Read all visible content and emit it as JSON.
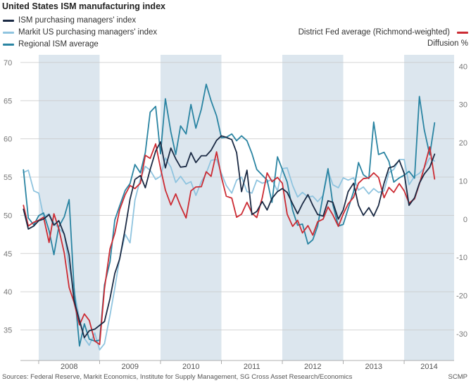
{
  "title": "United States ISM manufacturing index",
  "source": "Sources: Federal Reserve, Markit Economics, Institute for Supply Management, SG Cross Asset Research/Economics",
  "brand": "SCMP",
  "right_axis_label": "Diffusion %",
  "legend": {
    "left": [
      {
        "label": "ISM purchasing managers' index",
        "color": "#1b2a44"
      },
      {
        "label": "Markit US purchasing managers' index",
        "color": "#8fc4df"
      },
      {
        "label": "Regional ISM average",
        "color": "#2a84a2"
      }
    ],
    "right": [
      {
        "label": "District Fed average (Richmond-weighted)",
        "color": "#cc2b33"
      }
    ]
  },
  "chart_data": {
    "type": "line",
    "x_unit": "year",
    "xlim": [
      2007.7,
      2014.82
    ],
    "left_axis": {
      "ylim": [
        31,
        71
      ],
      "ticks": [
        35,
        40,
        45,
        50,
        55,
        60,
        65,
        70
      ]
    },
    "right_axis": {
      "ylim": [
        -37,
        43
      ],
      "ticks": [
        -30,
        -20,
        -10,
        0,
        10,
        20,
        30,
        40
      ]
    },
    "x_tick_labels": [
      "2008",
      "2009",
      "2010",
      "2011",
      "2012",
      "2013",
      "2014"
    ],
    "shaded_periods": [
      [
        2008.0,
        2009.0
      ],
      [
        2010.0,
        2011.0
      ],
      [
        2012.0,
        2013.0
      ],
      [
        2014.0,
        2014.82
      ]
    ],
    "grid": "horizontal",
    "series": [
      {
        "name": "ISM purchasing managers' index",
        "axis": "left",
        "color": "#1b2a44",
        "x": [
          2007.75,
          2007.83,
          2007.92,
          2008.0,
          2008.08,
          2008.17,
          2008.25,
          2008.33,
          2008.42,
          2008.5,
          2008.58,
          2008.67,
          2008.75,
          2008.83,
          2008.92,
          2009.0,
          2009.08,
          2009.17,
          2009.25,
          2009.33,
          2009.42,
          2009.5,
          2009.58,
          2009.67,
          2009.75,
          2009.83,
          2009.92,
          2010.0,
          2010.08,
          2010.17,
          2010.25,
          2010.33,
          2010.42,
          2010.5,
          2010.58,
          2010.67,
          2010.75,
          2010.83,
          2010.92,
          2011.0,
          2011.08,
          2011.17,
          2011.25,
          2011.33,
          2011.42,
          2011.5,
          2011.58,
          2011.67,
          2011.75,
          2011.83,
          2011.92,
          2012.0,
          2012.08,
          2012.17,
          2012.25,
          2012.33,
          2012.42,
          2012.5,
          2012.58,
          2012.67,
          2012.75,
          2012.83,
          2012.92,
          2013.0,
          2013.08,
          2013.17,
          2013.25,
          2013.33,
          2013.42,
          2013.5,
          2013.58,
          2013.67,
          2013.75,
          2013.83,
          2013.92,
          2014.0,
          2014.08,
          2014.17,
          2014.25,
          2014.33,
          2014.42,
          2014.5
        ],
        "values": [
          50.8,
          48.2,
          48.6,
          49.3,
          49.5,
          50.1,
          48.7,
          49.3,
          47.5,
          44.8,
          38.9,
          36.2,
          34.0,
          34.9,
          35.1,
          35.6,
          36.1,
          39.1,
          42.4,
          44.3,
          48.2,
          52.1,
          54.7,
          55.2,
          53.6,
          56.0,
          58.4,
          59.6,
          56.2,
          58.8,
          57.4,
          56.3,
          56.4,
          58.2,
          56.9,
          57.8,
          57.8,
          58.5,
          59.8,
          60.4,
          60.2,
          59.9,
          58.2,
          53.1,
          55.9,
          50.1,
          50.5,
          51.8,
          50.7,
          52.2,
          53.1,
          53.5,
          53.0,
          51.5,
          50.2,
          51.5,
          52.7,
          51.3,
          50.1,
          49.9,
          51.9,
          51.7,
          49.5,
          50.7,
          53.1,
          54.2,
          51.3,
          50.0,
          51.0,
          49.9,
          51.3,
          54.2,
          56.2,
          56.4,
          57.2,
          55.5,
          51.3,
          52.3,
          54.2,
          55.4,
          56.3,
          58.0
        ]
      },
      {
        "name": "Markit US purchasing managers' index",
        "axis": "left",
        "color": "#8fc4df",
        "x": [
          2007.75,
          2007.83,
          2007.92,
          2008.0,
          2008.08,
          2008.17,
          2008.25,
          2008.33,
          2008.42,
          2008.5,
          2008.58,
          2008.67,
          2008.75,
          2008.83,
          2008.92,
          2009.0,
          2009.08,
          2009.17,
          2009.25,
          2009.33,
          2009.42,
          2009.5,
          2009.58,
          2009.67,
          2009.75,
          2009.83,
          2009.92,
          2010.0,
          2010.08,
          2010.17,
          2010.25,
          2010.33,
          2010.42,
          2010.5,
          2010.58,
          2010.67,
          2010.75,
          2010.83,
          2010.92,
          2011.0,
          2011.08,
          2011.17,
          2011.25,
          2011.33,
          2011.42,
          2011.5,
          2011.58,
          2011.67,
          2011.75,
          2011.83,
          2011.92,
          2012.0,
          2012.08,
          2012.17,
          2012.25,
          2012.33,
          2012.42,
          2012.5,
          2012.58,
          2012.67,
          2012.75,
          2012.83,
          2012.92,
          2013.0,
          2013.08,
          2013.17,
          2013.25,
          2013.33,
          2013.42,
          2013.5,
          2013.58,
          2013.67,
          2013.75,
          2013.83,
          2013.92,
          2014.0,
          2014.08,
          2014.17,
          2014.25,
          2014.33,
          2014.42,
          2014.5
        ],
        "values": [
          55.6,
          55.9,
          53.2,
          52.9,
          49.8,
          50.2,
          49.0,
          48.3,
          47.6,
          43.2,
          40.1,
          36.5,
          33.9,
          33.0,
          34.6,
          32.4,
          33.2,
          36.9,
          40.5,
          44.4,
          47.5,
          46.4,
          52.0,
          54.8,
          56.4,
          55.9,
          54.7,
          55.1,
          57.5,
          56.3,
          54.3,
          55.1,
          54.1,
          54.4,
          52.6,
          54.4,
          55.5,
          57.2,
          57.3,
          55.5,
          53.9,
          52.9,
          54.6,
          55.0,
          53.1,
          52.9,
          54.6,
          54.2,
          54.4,
          54.7,
          53.2,
          56.1,
          56.2,
          53.9,
          52.4,
          53.0,
          52.4,
          52.5,
          51.8,
          52.6,
          55.8,
          54.0,
          53.6,
          54.9,
          54.6,
          54.9,
          53.3,
          53.7,
          52.8,
          53.5,
          53.0,
          53.2,
          55.6,
          56.0,
          57.3,
          57.3,
          54.0,
          55.1,
          55.5,
          56.2,
          57.5,
          57.1
        ]
      },
      {
        "name": "Regional ISM average",
        "axis": "right",
        "color": "#2a84a2",
        "x": [
          2007.75,
          2007.83,
          2007.92,
          2008.0,
          2008.08,
          2008.17,
          2008.25,
          2008.33,
          2008.42,
          2008.5,
          2008.58,
          2008.67,
          2008.75,
          2008.83,
          2008.92,
          2009.0,
          2009.08,
          2009.17,
          2009.25,
          2009.33,
          2009.42,
          2009.5,
          2009.58,
          2009.67,
          2009.75,
          2009.83,
          2009.92,
          2010.0,
          2010.08,
          2010.17,
          2010.25,
          2010.33,
          2010.42,
          2010.5,
          2010.58,
          2010.67,
          2010.75,
          2010.83,
          2010.92,
          2011.0,
          2011.08,
          2011.17,
          2011.25,
          2011.33,
          2011.42,
          2011.5,
          2011.58,
          2011.67,
          2011.75,
          2011.83,
          2011.92,
          2012.0,
          2012.08,
          2012.17,
          2012.25,
          2012.33,
          2012.42,
          2012.5,
          2012.58,
          2012.67,
          2012.75,
          2012.83,
          2012.92,
          2013.0,
          2013.08,
          2013.17,
          2013.25,
          2013.33,
          2013.42,
          2013.5,
          2013.58,
          2013.67,
          2013.75,
          2013.83,
          2013.92,
          2014.0,
          2014.08,
          2014.17,
          2014.25,
          2014.33,
          2014.42,
          2014.5
        ],
        "values": [
          12.9,
          0.3,
          -1.5,
          0.9,
          1.6,
          -3.0,
          -9.3,
          -2.0,
          0.6,
          5.1,
          -17.8,
          -33.2,
          -27.4,
          -31.4,
          -31.9,
          -31.7,
          -17.2,
          -11.2,
          -0.2,
          3.5,
          7.5,
          9.3,
          14.3,
          12.1,
          17.4,
          28.0,
          29.5,
          17.1,
          31.5,
          22.8,
          16.9,
          24.4,
          22.3,
          30.0,
          23.8,
          28.8,
          35.3,
          31.0,
          27.0,
          21.3,
          21.4,
          22.3,
          20.5,
          21.8,
          20.5,
          17.2,
          13.0,
          11.5,
          10.2,
          4.4,
          16.3,
          13.0,
          9.7,
          2.3,
          -1.6,
          -1.3,
          -6.5,
          -5.4,
          -1.8,
          6.4,
          13.2,
          3.8,
          -1.8,
          -1.4,
          2.7,
          7.2,
          14.8,
          11.6,
          10.6,
          25.4,
          16.9,
          17.5,
          15.1,
          9.7,
          10.8,
          11.5,
          12.5,
          10.7,
          32.1,
          23.4,
          16.8,
          25.2
        ]
      },
      {
        "name": "District Fed average (Richmond-weighted)",
        "axis": "right",
        "color": "#cc2b33",
        "x": [
          2007.75,
          2007.83,
          2007.92,
          2008.0,
          2008.08,
          2008.17,
          2008.25,
          2008.33,
          2008.42,
          2008.5,
          2008.58,
          2008.67,
          2008.75,
          2008.83,
          2008.92,
          2009.0,
          2009.08,
          2009.17,
          2009.25,
          2009.33,
          2009.42,
          2009.5,
          2009.58,
          2009.67,
          2009.75,
          2009.83,
          2009.92,
          2010.0,
          2010.08,
          2010.17,
          2010.25,
          2010.33,
          2010.42,
          2010.5,
          2010.58,
          2010.67,
          2010.75,
          2010.83,
          2010.92,
          2011.0,
          2011.08,
          2011.17,
          2011.25,
          2011.33,
          2011.42,
          2011.5,
          2011.58,
          2011.67,
          2011.75,
          2011.83,
          2011.92,
          2012.0,
          2012.08,
          2012.17,
          2012.25,
          2012.33,
          2012.42,
          2012.5,
          2012.58,
          2012.67,
          2012.75,
          2012.83,
          2012.92,
          2013.0,
          2013.08,
          2013.17,
          2013.25,
          2013.33,
          2013.42,
          2013.5,
          2013.58,
          2013.67,
          2013.75,
          2013.83,
          2013.92,
          2014.0,
          2014.08,
          2014.17,
          2014.25,
          2014.33,
          2014.42,
          2014.5
        ],
        "values": [
          3.6,
          -1.8,
          -0.8,
          -0.3,
          0.5,
          -6.1,
          1.4,
          -2.5,
          -8.9,
          -17.9,
          -21.7,
          -27.7,
          -24.8,
          -26.5,
          -31.9,
          -32.8,
          -18.2,
          -7.8,
          -3.7,
          2.5,
          6.4,
          8.8,
          8.0,
          9.4,
          16.7,
          15.9,
          19.7,
          13.3,
          7.6,
          3.7,
          6.6,
          3.4,
          0.3,
          7.4,
          8.4,
          8.5,
          12.4,
          11.2,
          17.6,
          11.0,
          6.0,
          5.5,
          0.5,
          1.3,
          4.4,
          1.6,
          0.4,
          5.6,
          12.1,
          9.8,
          10.9,
          9.4,
          1.3,
          -1.9,
          -0.3,
          -3.6,
          -1.7,
          -4.2,
          -0.7,
          0.0,
          3.2,
          1.1,
          -1.9,
          1.3,
          4.0,
          5.7,
          9.4,
          10.6,
          10.8,
          12.1,
          10.9,
          5.6,
          8.3,
          7.0,
          9.3,
          7.4,
          4.2,
          5.3,
          9.2,
          13.5,
          18.9,
          10.5
        ]
      }
    ]
  }
}
